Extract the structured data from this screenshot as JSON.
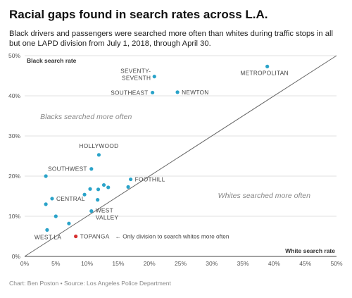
{
  "title": "Racial gaps found in search rates across L.A.",
  "subtitle": "Black drivers and passengers were searched more often than whites during traffic stops in all but one LAPD division from July 1, 2018, through April 30.",
  "source": "Chart: Ben Poston • Source: Los Angeles Police Department",
  "chart_data": {
    "type": "scatter",
    "xlabel": "White search rate",
    "ylabel": "Black search rate",
    "xlim": [
      0,
      50
    ],
    "ylim": [
      0,
      50
    ],
    "x_ticks": [
      "0%",
      "5%",
      "10%",
      "15%",
      "20%",
      "25%",
      "30%",
      "35%",
      "40%",
      "45%",
      "50%"
    ],
    "y_ticks": [
      "0%",
      "10%",
      "20%",
      "30%",
      "40%",
      "50%"
    ],
    "grid": "horizontal",
    "reference_line": "y = x",
    "annotations": {
      "upper": "Blacks searched more often",
      "lower": "Whites searched more often",
      "topanga_note": "← Only division to search whites more often"
    },
    "colors": {
      "point": "#2aa3c9",
      "highlight": "#d62f2f",
      "reference_line": "#666666",
      "grid": "#d9d9d9"
    },
    "points": [
      {
        "label": "METROPOLITAN",
        "x": 38.9,
        "y": 47.3
      },
      {
        "label": "SEVENTY-SEVENTH",
        "x": 20.8,
        "y": 44.8
      },
      {
        "label": "SOUTHEAST",
        "x": 20.5,
        "y": 40.8
      },
      {
        "label": "NEWTON",
        "x": 24.5,
        "y": 40.9
      },
      {
        "label": "HOLLYWOOD",
        "x": 11.9,
        "y": 25.3
      },
      {
        "label": "SOUTHWEST",
        "x": 10.7,
        "y": 21.8
      },
      {
        "label": "FOOTHILL",
        "x": 17.0,
        "y": 19.2
      },
      {
        "label": "CENTRAL",
        "x": 4.4,
        "y": 14.4
      },
      {
        "label": "WEST VALLEY",
        "x": 10.7,
        "y": 11.3
      },
      {
        "label": "WEST LA",
        "x": 3.6,
        "y": 6.6
      },
      {
        "label": "TOPANGA",
        "x": 8.2,
        "y": 5.0,
        "highlight": true
      },
      {
        "label": "",
        "x": 3.4,
        "y": 20.0
      },
      {
        "label": "",
        "x": 3.4,
        "y": 13.0
      },
      {
        "label": "",
        "x": 5.0,
        "y": 10.0
      },
      {
        "label": "",
        "x": 7.1,
        "y": 8.2
      },
      {
        "label": "",
        "x": 9.6,
        "y": 15.4
      },
      {
        "label": "",
        "x": 10.5,
        "y": 16.8
      },
      {
        "label": "",
        "x": 11.7,
        "y": 14.1
      },
      {
        "label": "",
        "x": 11.8,
        "y": 16.7
      },
      {
        "label": "",
        "x": 12.7,
        "y": 17.8
      },
      {
        "label": "",
        "x": 13.4,
        "y": 17.2
      },
      {
        "label": "",
        "x": 16.6,
        "y": 17.3
      }
    ]
  }
}
